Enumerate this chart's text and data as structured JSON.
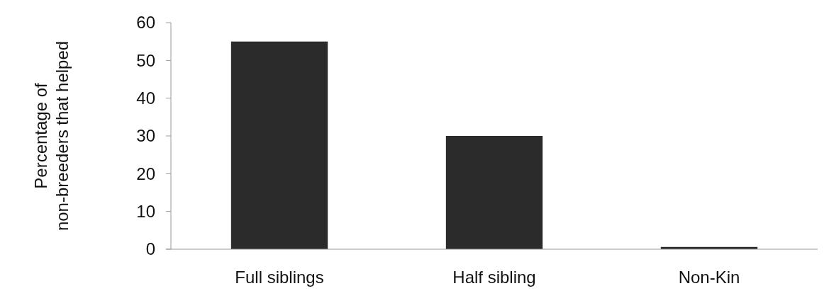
{
  "chart_data": {
    "type": "bar",
    "ylabel": "Percentage of non-breeders that helped",
    "categories": [
      "Full siblings",
      "Half sibling",
      "Non-Kin"
    ],
    "values": [
      55,
      30,
      0.6
    ],
    "color": "#2b2b2b",
    "ylim": [
      0,
      60
    ],
    "yticks": [
      0,
      10,
      20,
      30,
      40,
      50,
      60
    ],
    "grid": false
  }
}
